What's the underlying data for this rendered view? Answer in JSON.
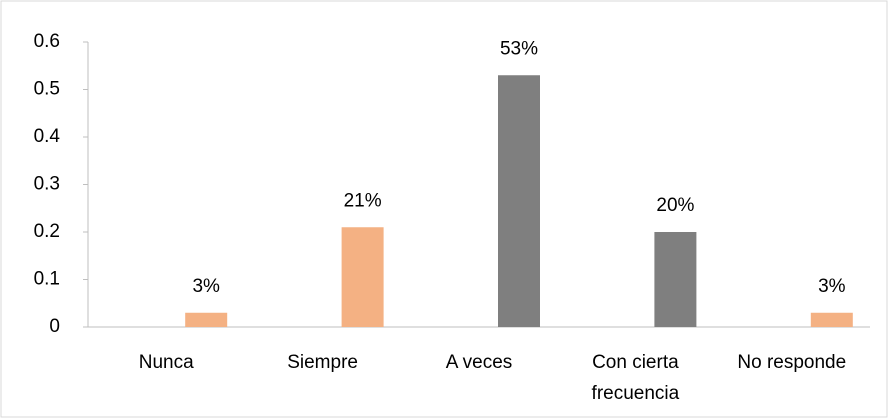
{
  "chart_data": {
    "type": "bar",
    "categories": [
      "Nunca",
      "Siempre",
      "A veces",
      "Con cierta frecuencia",
      "No responde"
    ],
    "values": [
      0.03,
      0.21,
      0.53,
      0.2,
      0.03
    ],
    "value_labels": [
      "3%",
      "21%",
      "53%",
      "20%",
      "3%"
    ],
    "colors": [
      "#f4b183",
      "#f4b183",
      "#7f7f7f",
      "#7f7f7f",
      "#f4b183"
    ],
    "ylim": [
      0,
      0.6
    ],
    "yticks": [
      0,
      0.1,
      0.2,
      0.3,
      0.4,
      0.5,
      0.6
    ],
    "grid": false
  }
}
